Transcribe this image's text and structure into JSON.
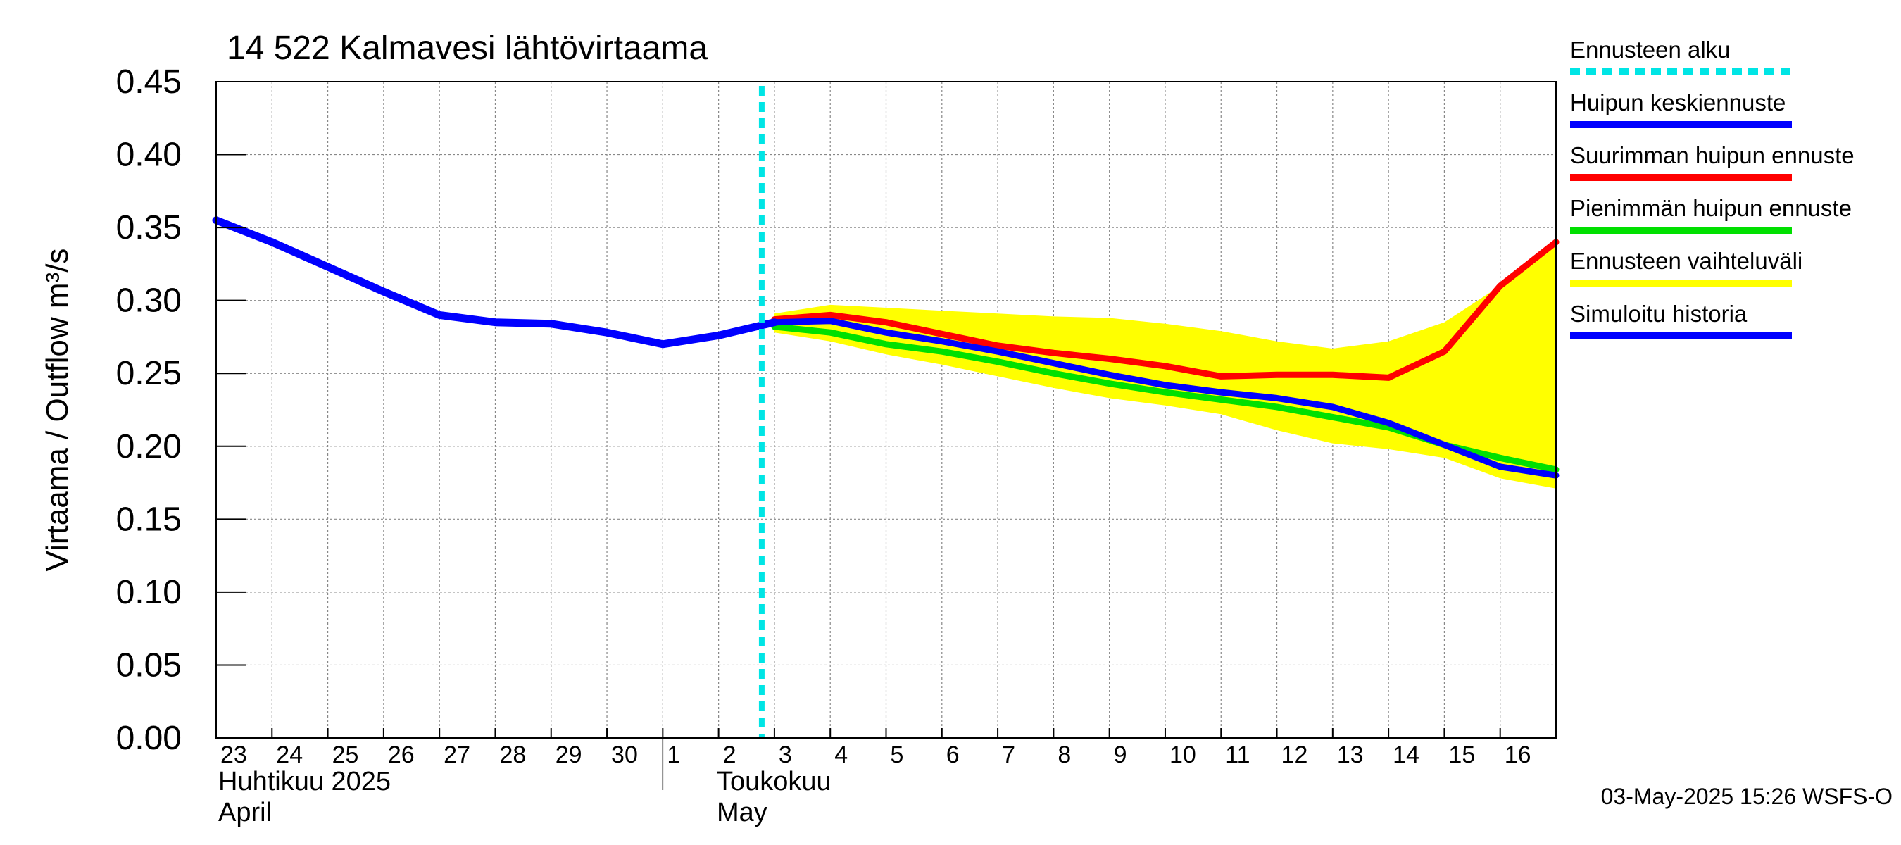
{
  "chart_data": {
    "type": "line",
    "title": "14 522 Kalmavesi lähtövirtaama",
    "ylabel": "Virtaama / Outflow    m³/s",
    "ylim": [
      0,
      0.45
    ],
    "y_ticks": [
      "0.00",
      "0.05",
      "0.10",
      "0.15",
      "0.20",
      "0.25",
      "0.30",
      "0.35",
      "0.40",
      "0.45"
    ],
    "x_range": [
      "2025-04-23",
      "2025-05-17"
    ],
    "x_day_labels": [
      "23",
      "24",
      "25",
      "26",
      "27",
      "28",
      "29",
      "30",
      "1",
      "2",
      "3",
      "4",
      "5",
      "6",
      "7",
      "8",
      "9",
      "10",
      "11",
      "12",
      "13",
      "14",
      "15",
      "16"
    ],
    "month_labels": [
      {
        "line1": "Huhtikuu  2025",
        "line2": "April"
      },
      {
        "line1": "Toukokuu",
        "line2": "May"
      }
    ],
    "forecast_start": "2025-05-03",
    "grid": true,
    "legend_position": "right",
    "legend": [
      {
        "label": "Ennusteen alku",
        "color": "#00e5e5",
        "style": "dashed"
      },
      {
        "label": "Huipun keskiennuste",
        "color": "#0000ff",
        "style": "solid"
      },
      {
        "label": "Suurimman huipun ennuste",
        "color": "#ff0000",
        "style": "solid"
      },
      {
        "label": "Pienimmän huipun ennuste",
        "color": "#00e000",
        "style": "solid"
      },
      {
        "label": "Ennusteen vaihteluväli",
        "color": "#ffff00",
        "style": "solid"
      },
      {
        "label": "Simuloitu historia",
        "color": "#0000ff",
        "style": "solid"
      }
    ],
    "series": [
      {
        "key": "range",
        "color": "#ffff00",
        "x": [
          "2025-05-03",
          "2025-05-04",
          "2025-05-05",
          "2025-05-06",
          "2025-05-07",
          "2025-05-08",
          "2025-05-09",
          "2025-05-10",
          "2025-05-11",
          "2025-05-12",
          "2025-05-13",
          "2025-05-14",
          "2025-05-15",
          "2025-05-16",
          "2025-05-17"
        ],
        "upper": [
          0.291,
          0.297,
          0.295,
          0.293,
          0.291,
          0.289,
          0.288,
          0.284,
          0.279,
          0.272,
          0.267,
          0.272,
          0.285,
          0.31,
          0.34
        ],
        "lower": [
          0.278,
          0.272,
          0.263,
          0.256,
          0.248,
          0.24,
          0.233,
          0.228,
          0.222,
          0.211,
          0.202,
          0.198,
          0.192,
          0.178,
          0.171
        ]
      },
      {
        "key": "max",
        "color": "#ff0000",
        "x": [
          "2025-05-03",
          "2025-05-04",
          "2025-05-05",
          "2025-05-06",
          "2025-05-07",
          "2025-05-08",
          "2025-05-09",
          "2025-05-10",
          "2025-05-11",
          "2025-05-12",
          "2025-05-13",
          "2025-05-14",
          "2025-05-15",
          "2025-05-16",
          "2025-05-17"
        ],
        "y": [
          0.287,
          0.29,
          0.285,
          0.277,
          0.269,
          0.264,
          0.26,
          0.255,
          0.248,
          0.249,
          0.249,
          0.247,
          0.265,
          0.31,
          0.34
        ]
      },
      {
        "key": "min",
        "color": "#00e000",
        "x": [
          "2025-05-03",
          "2025-05-04",
          "2025-05-05",
          "2025-05-06",
          "2025-05-07",
          "2025-05-08",
          "2025-05-09",
          "2025-05-10",
          "2025-05-11",
          "2025-05-12",
          "2025-05-13",
          "2025-05-14",
          "2025-05-15",
          "2025-05-16",
          "2025-05-17"
        ],
        "y": [
          0.282,
          0.278,
          0.27,
          0.265,
          0.258,
          0.25,
          0.243,
          0.237,
          0.232,
          0.227,
          0.22,
          0.213,
          0.201,
          0.192,
          0.184
        ]
      },
      {
        "key": "mean",
        "color": "#0000ff",
        "x": [
          "2025-05-03",
          "2025-05-04",
          "2025-05-05",
          "2025-05-06",
          "2025-05-07",
          "2025-05-08",
          "2025-05-09",
          "2025-05-10",
          "2025-05-11",
          "2025-05-12",
          "2025-05-13",
          "2025-05-14",
          "2025-05-15",
          "2025-05-16",
          "2025-05-17"
        ],
        "y": [
          0.285,
          0.286,
          0.278,
          0.272,
          0.265,
          0.257,
          0.249,
          0.242,
          0.237,
          0.233,
          0.227,
          0.216,
          0.201,
          0.186,
          0.18
        ]
      },
      {
        "key": "history",
        "color": "#0000ff",
        "x": [
          "2025-04-23",
          "2025-04-24",
          "2025-04-25",
          "2025-04-26",
          "2025-04-27",
          "2025-04-28",
          "2025-04-29",
          "2025-04-30",
          "2025-05-01",
          "2025-05-02",
          "2025-05-03"
        ],
        "y": [
          0.355,
          0.34,
          0.323,
          0.306,
          0.29,
          0.285,
          0.284,
          0.278,
          0.27,
          0.276,
          0.285
        ]
      }
    ]
  },
  "footer": {
    "timestamp": "03-May-2025 15:26 WSFS-O"
  }
}
